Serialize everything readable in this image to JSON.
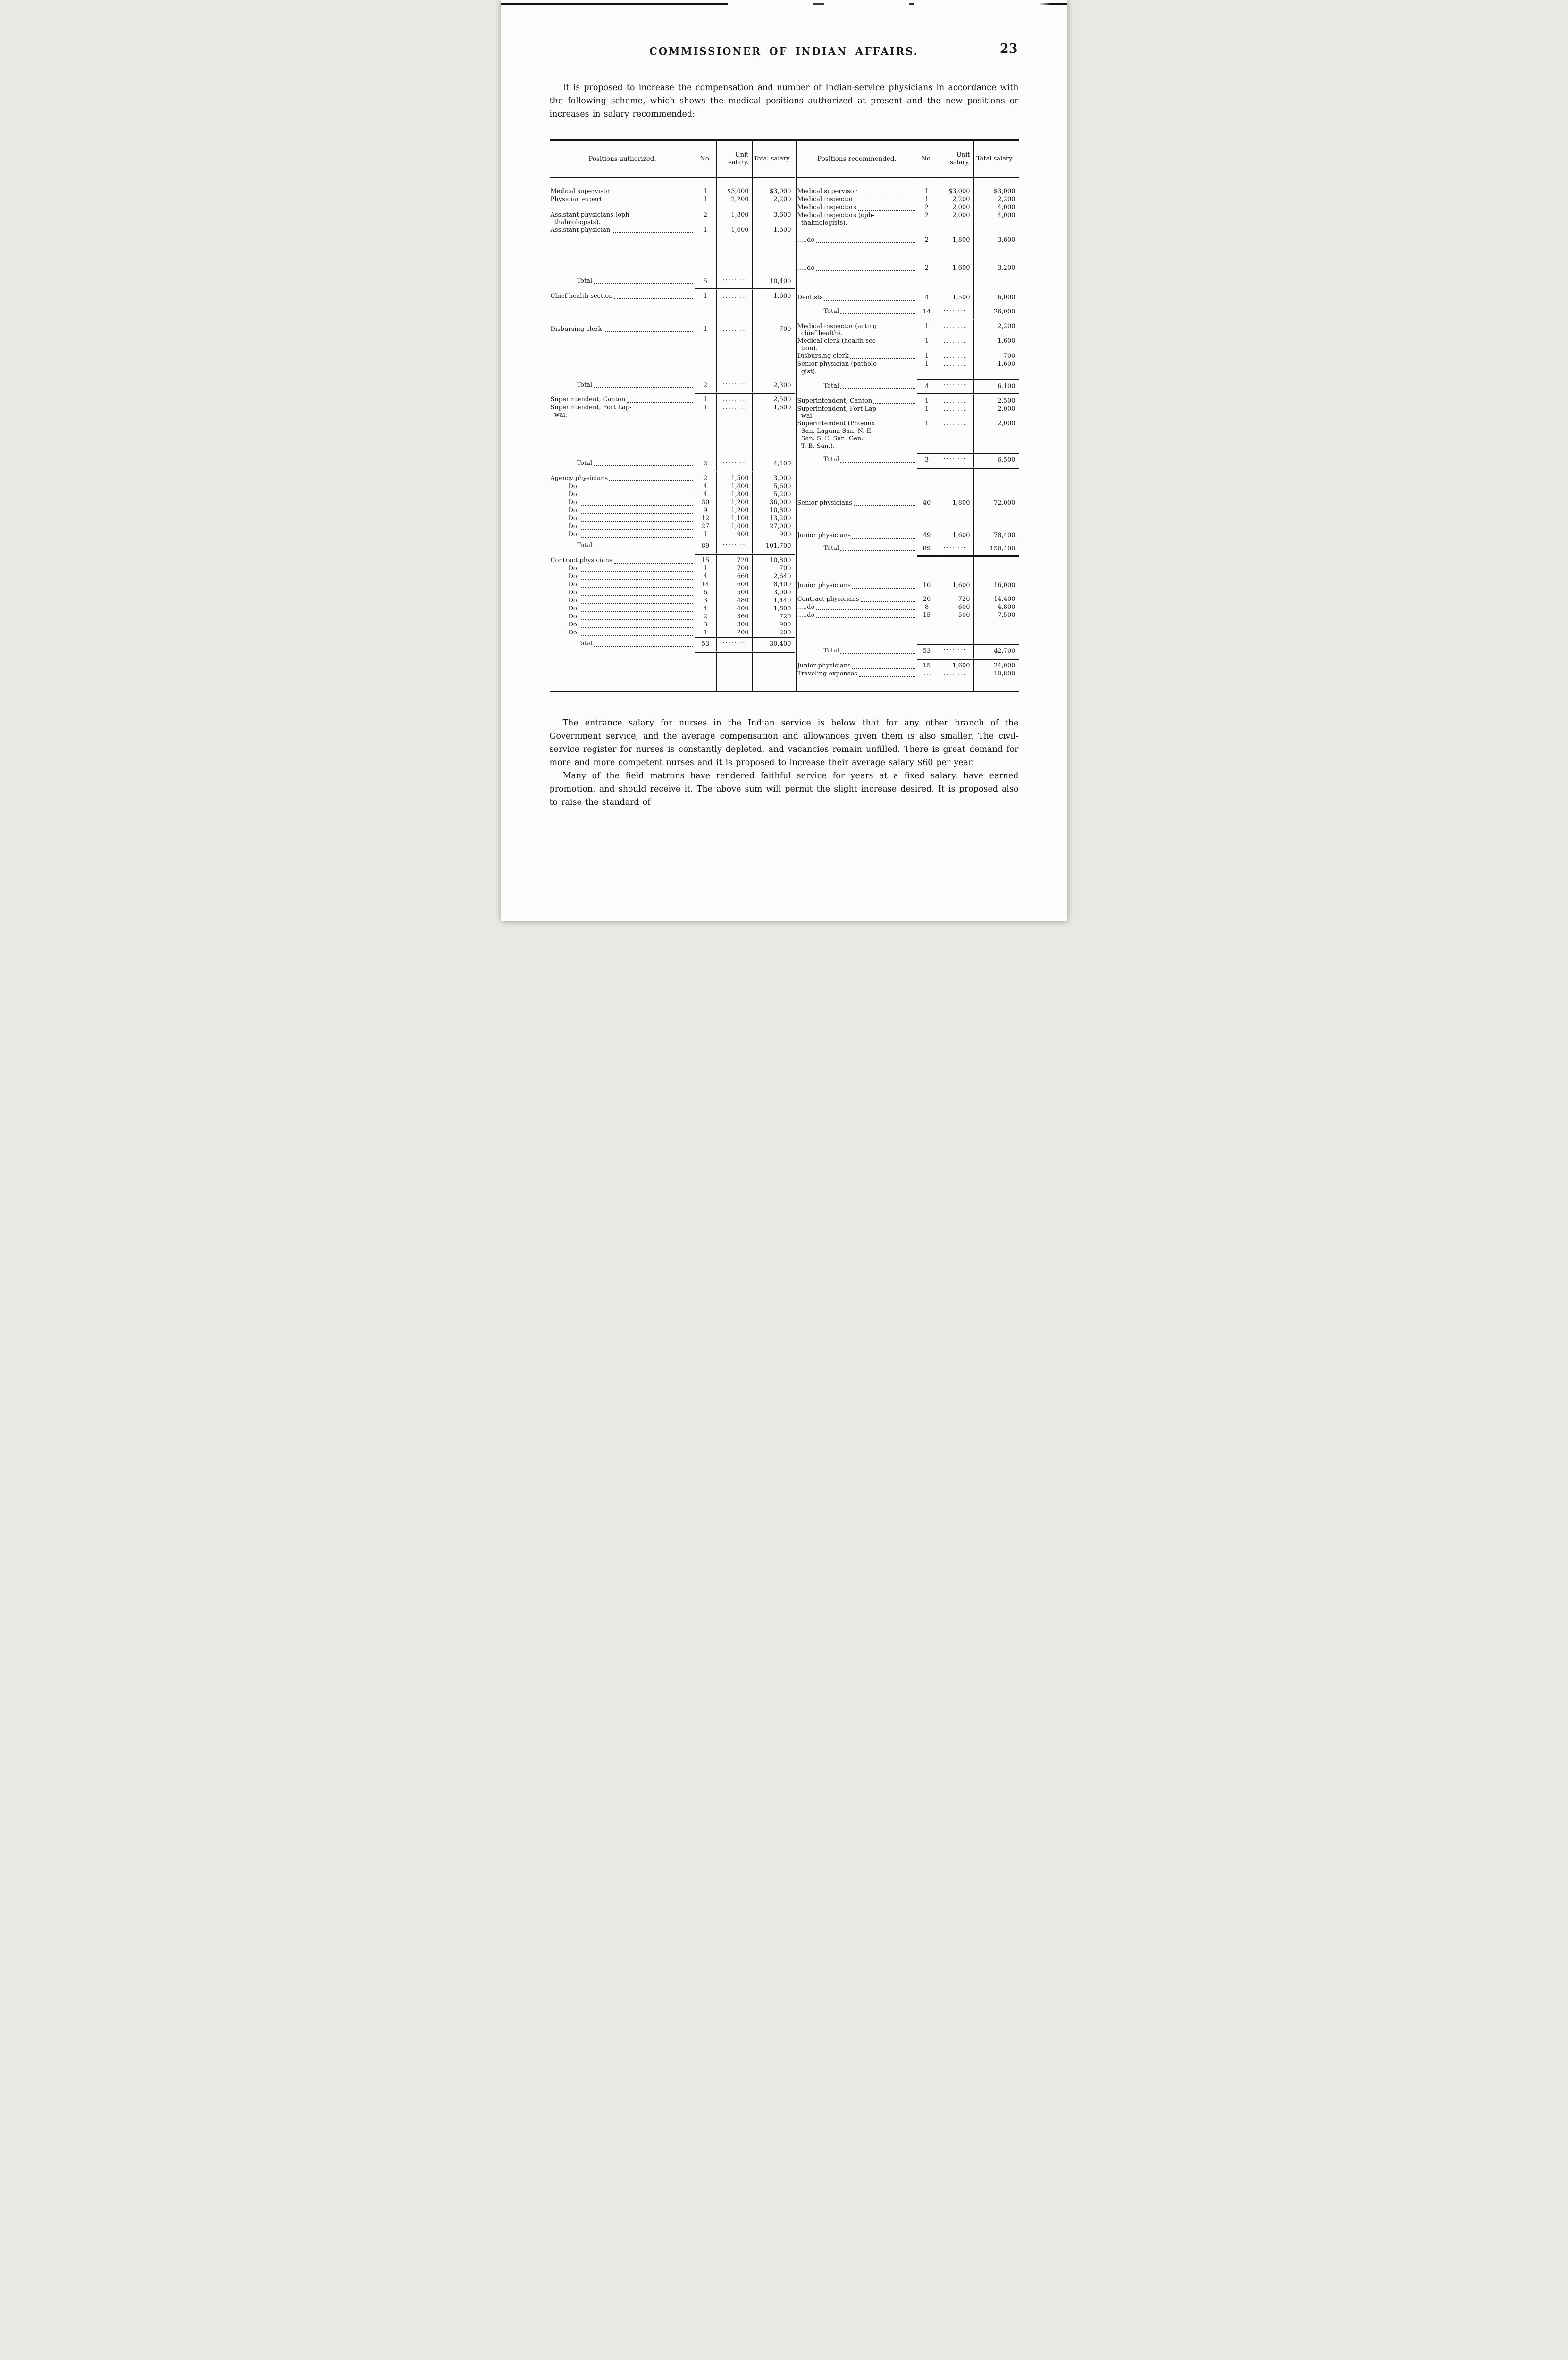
{
  "header": {
    "title": "COMMISSIONER OF INDIAN AFFAIRS.",
    "page_number": "23"
  },
  "intro": "It is proposed to increase the compensation and number of Indian-service physicians in accordance with the following scheme, which shows the medical positions authorized at present and the new positions or increases in salary recommended:",
  "closing": [
    "The entrance salary for nurses in the Indian service is below that for any other branch of the Government service, and the average compensation and allowances given them is also smaller.  The civil-service register for nurses is constantly depleted, and vacancies remain unfilled.  There is great demand for more and more competent nurses and it is proposed to increase their average salary $60 per year.",
    "Many of the field matrons have rendered faithful service for years at a fixed salary, have earned promotion, and should receive it.  The above sum will permit the slight increase desired.  It is proposed also to raise the standard of"
  ],
  "table": {
    "left": {
      "headers": {
        "positions": "Positions authorized.",
        "no": "No.",
        "unit": "Unit salary.",
        "total": "Total salary."
      },
      "rows": [
        {
          "kind": "spacer",
          "h": 20
        },
        {
          "kind": "item",
          "label": "Medical supervisor",
          "no": "1",
          "unit": "$3,000",
          "total": "$3,000"
        },
        {
          "kind": "item",
          "label": "Physician expert",
          "no": "1",
          "unit": "2,200",
          "total": "2,200"
        },
        {
          "kind": "spacer",
          "h": 16
        },
        {
          "kind": "item",
          "label": "Assistant physicians (oph-\n  thalmologists).",
          "no": "2",
          "unit": "1,800",
          "total": "3,600",
          "leaders": false
        },
        {
          "kind": "item",
          "label": "Assistant physician",
          "no": "1",
          "unit": "1,600",
          "total": "1,600"
        },
        {
          "kind": "spacer",
          "h": 85
        },
        {
          "kind": "total",
          "label": "Total",
          "no": "5",
          "unit": "........",
          "total": "10,400"
        },
        {
          "kind": "item",
          "label": "Chief health section",
          "no": "1",
          "unit": "........",
          "total": "1,600"
        },
        {
          "kind": "spacer",
          "h": 53
        },
        {
          "kind": "item",
          "label": "Disbursing clerk",
          "no": "1",
          "unit": "........",
          "total": "700"
        },
        {
          "kind": "spacer",
          "h": 95
        },
        {
          "kind": "total",
          "label": "Total",
          "no": "2",
          "unit": "........",
          "total": "2,300"
        },
        {
          "kind": "item",
          "label": "Superintendent, Canton",
          "no": "1",
          "unit": "........",
          "total": "2,500"
        },
        {
          "kind": "item",
          "label": "Superintendent, Fort Lap-\n  wai.",
          "no": "1",
          "unit": "........",
          "total": "1,600",
          "leaders": false
        },
        {
          "kind": "spacer",
          "h": 80
        },
        {
          "kind": "total",
          "label": "Total",
          "no": "2",
          "unit": "........",
          "total": "4,100"
        },
        {
          "kind": "item",
          "label": "Agency physicians",
          "no": "2",
          "unit": "1,500",
          "total": "3,000"
        },
        {
          "kind": "item",
          "label": "Do",
          "no": "4",
          "unit": "1,400",
          "total": "5,600",
          "indent": 1
        },
        {
          "kind": "item",
          "label": "Do",
          "no": "4",
          "unit": "1,300",
          "total": "5,200",
          "indent": 1
        },
        {
          "kind": "item",
          "label": "Do",
          "no": "30",
          "unit": "1,200",
          "total": "36,000",
          "indent": 1
        },
        {
          "kind": "item",
          "label": "Do",
          "no": "9",
          "unit": "1,200",
          "total": "10,800",
          "indent": 1
        },
        {
          "kind": "item",
          "label": "Do",
          "no": "12",
          "unit": "1,100",
          "total": "13,200",
          "indent": 1
        },
        {
          "kind": "item",
          "label": "Do",
          "no": "27",
          "unit": "1,000",
          "total": "27,000",
          "indent": 1
        },
        {
          "kind": "item",
          "label": "Do",
          "no": "1",
          "unit": "900",
          "total": "900",
          "indent": 1
        },
        {
          "kind": "total",
          "label": "Total",
          "no": "89",
          "unit": "........",
          "total": "101,700"
        },
        {
          "kind": "item",
          "label": "Contract physicians",
          "no": "15",
          "unit": "720",
          "total": "10,800"
        },
        {
          "kind": "item",
          "label": "Do",
          "no": "1",
          "unit": "700",
          "total": "700",
          "indent": 1
        },
        {
          "kind": "item",
          "label": "Do",
          "no": "4",
          "unit": "660",
          "total": "2,640",
          "indent": 1
        },
        {
          "kind": "item",
          "label": "Do",
          "no": "14",
          "unit": "600",
          "total": "8,400",
          "indent": 1
        },
        {
          "kind": "item",
          "label": "Do",
          "no": "6",
          "unit": "500",
          "total": "3,000",
          "indent": 1
        },
        {
          "kind": "item",
          "label": "Do",
          "no": "3",
          "unit": "480",
          "total": "1,440",
          "indent": 1
        },
        {
          "kind": "item",
          "label": "Do",
          "no": "4",
          "unit": "400",
          "total": "1,600",
          "indent": 1
        },
        {
          "kind": "item",
          "label": "Do",
          "no": "2",
          "unit": "360",
          "total": "720",
          "indent": 1
        },
        {
          "kind": "item",
          "label": "Do",
          "no": "3",
          "unit": "300",
          "total": "900",
          "indent": 1
        },
        {
          "kind": "item",
          "label": "Do",
          "no": "1",
          "unit": "200",
          "total": "200",
          "indent": 1
        },
        {
          "kind": "total",
          "label": "Total",
          "no": "53",
          "unit": "........",
          "total": "30,400"
        },
        {
          "kind": "fill"
        }
      ]
    },
    "right": {
      "headers": {
        "positions": "Positions recommended.",
        "no": "No.",
        "unit": "Unit salary.",
        "total": "Total salary."
      },
      "rows": [
        {
          "kind": "spacer",
          "h": 20
        },
        {
          "kind": "item",
          "label": "Medical supervisor",
          "no": "1",
          "unit": "$3,000",
          "total": "$3,000"
        },
        {
          "kind": "item",
          "label": "Medical inspector",
          "no": "1",
          "unit": "2,200",
          "total": "2,200"
        },
        {
          "kind": "item",
          "label": "Medical inspectors",
          "no": "2",
          "unit": "2,000",
          "total": "4,000"
        },
        {
          "kind": "item",
          "label": "Medical inspectors (oph-\n  thalmologists).",
          "no": "2",
          "unit": "2,000",
          "total": "4,000",
          "leaders": false
        },
        {
          "kind": "spacer",
          "h": 20
        },
        {
          "kind": "item",
          "label": ".....do",
          "no": "2",
          "unit": "1,800",
          "total": "3,600"
        },
        {
          "kind": "spacer",
          "h": 42
        },
        {
          "kind": "item",
          "label": ".....do",
          "no": "2",
          "unit": "1,600",
          "total": "3,200"
        },
        {
          "kind": "spacer",
          "h": 46
        },
        {
          "kind": "item",
          "label": "Dentists",
          "no": "4",
          "unit": "1,500",
          "total": "6,000"
        },
        {
          "kind": "spacer",
          "h": 6
        },
        {
          "kind": "total",
          "label": "Total",
          "no": "14",
          "unit": "........",
          "total": "26,000"
        },
        {
          "kind": "item",
          "label": "Medical inspector (acting\n  chief health).",
          "no": "1",
          "unit": "........",
          "total": "2,200",
          "leaders": false
        },
        {
          "kind": "item",
          "label": "Medical clerk (health sec-\n  tion).",
          "no": "1",
          "unit": "........",
          "total": "1,600",
          "leaders": false
        },
        {
          "kind": "item",
          "label": "Disbursing clerk",
          "no": "1",
          "unit": "........",
          "total": "700"
        },
        {
          "kind": "item",
          "label": "Senior physician (patholo-\n  gist).",
          "no": "1",
          "unit": "........",
          "total": "1,600",
          "leaders": false
        },
        {
          "kind": "spacer",
          "h": 8
        },
        {
          "kind": "total",
          "label": "Total",
          "no": "4",
          "unit": "........",
          "total": "6,100"
        },
        {
          "kind": "item",
          "label": "Superintendent, Canton",
          "no": "1",
          "unit": "........",
          "total": "2,500"
        },
        {
          "kind": "item",
          "label": "Superintendent, Fort Lap-\n  wai.",
          "no": "1",
          "unit": "........",
          "total": "2,000",
          "leaders": false
        },
        {
          "kind": "item",
          "label": "Superintendent (Phoenix\n  San. Laguna San. N. E.\n  San. S. E. San. Gen.\n  T. B. San.).",
          "no": "1",
          "unit": "........",
          "total": "2,000",
          "leaders": false
        },
        {
          "kind": "spacer",
          "h": 6
        },
        {
          "kind": "total",
          "label": "Total",
          "no": "3",
          "unit": "........",
          "total": "6,500"
        },
        {
          "kind": "spacer",
          "h": 60
        },
        {
          "kind": "item",
          "label": "Senior physicians",
          "no": "40",
          "unit": "1,800",
          "total": "72,000"
        },
        {
          "kind": "spacer",
          "h": 52
        },
        {
          "kind": "item",
          "label": "Junior physicians",
          "no": "49",
          "unit": "1,600",
          "total": "78,400"
        },
        {
          "kind": "spacer",
          "h": 4
        },
        {
          "kind": "total",
          "label": "Total",
          "no": "89",
          "unit": "........",
          "total": "150,400"
        },
        {
          "kind": "spacer",
          "h": 48
        },
        {
          "kind": "item",
          "label": "Junior physicians",
          "no": "10",
          "unit": "1,600",
          "total": "16,000"
        },
        {
          "kind": "spacer",
          "h": 12
        },
        {
          "kind": "item",
          "label": "Contract physicians",
          "no": "20",
          "unit": "720",
          "total": "14,400"
        },
        {
          "kind": "item",
          "label": ".....do",
          "no": "8",
          "unit": "600",
          "total": "4,800"
        },
        {
          "kind": "item",
          "label": ".....do",
          "no": "15",
          "unit": "500",
          "total": "7,500"
        },
        {
          "kind": "spacer",
          "h": 52
        },
        {
          "kind": "total",
          "label": "Total",
          "no": "53",
          "unit": "........",
          "total": "42,700"
        },
        {
          "kind": "item",
          "label": "Junior physicians",
          "no": "15",
          "unit": "1,600",
          "total": "24,000"
        },
        {
          "kind": "item",
          "label": "Traveling expenses",
          "no": "....",
          "unit": "........",
          "total": "10,800"
        },
        {
          "kind": "fill"
        }
      ]
    }
  }
}
